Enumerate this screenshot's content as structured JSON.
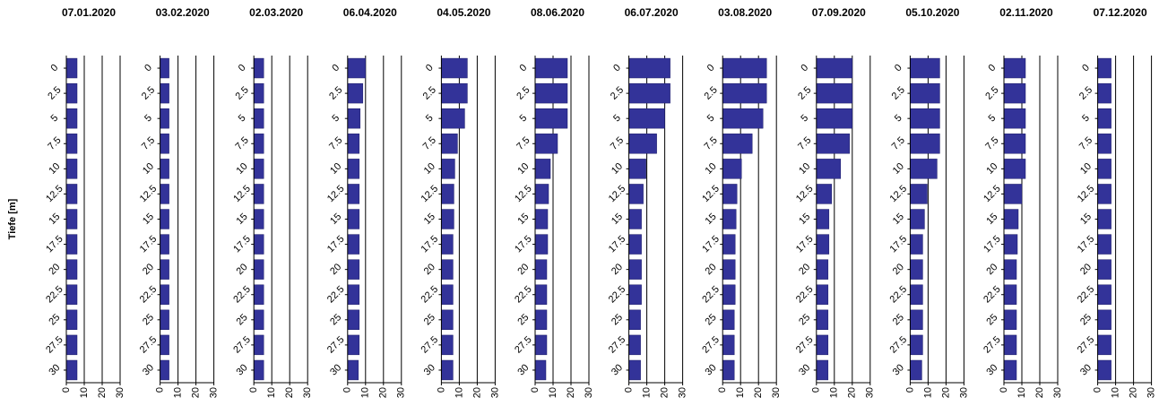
{
  "chart_data": {
    "type": "bar",
    "orientation": "horizontal",
    "ylabel": "Tiefe [m]",
    "xlabel": "",
    "xlim": [
      0,
      30
    ],
    "x_ticks": [
      "0",
      "10",
      "20",
      "30"
    ],
    "categories": [
      "0",
      "2.5",
      "5",
      "7.5",
      "10",
      "12.5",
      "15",
      "17.5",
      "20",
      "22.5",
      "25",
      "27.5",
      "30"
    ],
    "grid": "vertical",
    "colors": {
      "bar": "#333399",
      "bar_edge": "#1a1a66",
      "axis": "#000000"
    },
    "panels": [
      {
        "title": "07.01.2020",
        "values": [
          6.0,
          6.0,
          6.0,
          6.0,
          6.0,
          6.0,
          6.0,
          6.0,
          6.0,
          6.0,
          6.0,
          6.0,
          6.0
        ]
      },
      {
        "title": "03.02.2020",
        "values": [
          5.0,
          5.0,
          5.0,
          5.0,
          5.0,
          5.0,
          5.0,
          5.0,
          5.0,
          5.0,
          5.0,
          5.0,
          5.0
        ]
      },
      {
        "title": "02.03.2020",
        "values": [
          5.5,
          5.5,
          5.5,
          5.5,
          5.5,
          5.5,
          5.5,
          5.5,
          5.5,
          5.5,
          5.5,
          5.5,
          5.5
        ]
      },
      {
        "title": "06.04.2020",
        "values": [
          10.0,
          8.5,
          7.0,
          6.5,
          6.5,
          6.5,
          6.5,
          6.5,
          6.5,
          6.5,
          6.5,
          6.5,
          6.0
        ]
      },
      {
        "title": "04.05.2020",
        "values": [
          14.5,
          14.5,
          13.0,
          9.0,
          7.5,
          7.0,
          7.0,
          6.5,
          6.5,
          6.5,
          6.5,
          6.5,
          6.5
        ]
      },
      {
        "title": "08.06.2020",
        "values": [
          18.0,
          18.0,
          18.0,
          12.5,
          8.5,
          7.5,
          7.0,
          7.0,
          6.5,
          6.5,
          6.5,
          6.5,
          6.0
        ]
      },
      {
        "title": "06.07.2020",
        "values": [
          23.0,
          23.0,
          20.0,
          15.5,
          9.5,
          8.0,
          7.0,
          7.0,
          7.0,
          7.0,
          6.5,
          6.5,
          6.5
        ]
      },
      {
        "title": "03.08.2020",
        "values": [
          24.5,
          24.5,
          22.5,
          16.5,
          10.5,
          8.0,
          7.5,
          7.0,
          7.0,
          7.0,
          6.5,
          6.5,
          6.5
        ]
      },
      {
        "title": "07.09.2020",
        "values": [
          20.0,
          20.0,
          20.0,
          18.5,
          13.5,
          8.5,
          7.0,
          7.0,
          6.5,
          6.5,
          6.5,
          6.5,
          6.5
        ]
      },
      {
        "title": "05.10.2020",
        "values": [
          16.5,
          16.5,
          16.5,
          16.5,
          15.0,
          9.5,
          8.0,
          7.0,
          7.0,
          7.0,
          7.0,
          7.0,
          6.5
        ]
      },
      {
        "title": "02.11.2020",
        "values": [
          12.0,
          12.0,
          12.0,
          12.0,
          12.0,
          10.0,
          8.0,
          7.5,
          7.0,
          7.0,
          7.0,
          7.0,
          7.0
        ]
      },
      {
        "title": "07.12.2020",
        "values": [
          7.5,
          7.5,
          7.5,
          7.5,
          7.5,
          7.5,
          7.5,
          7.5,
          7.5,
          7.5,
          7.5,
          7.5,
          7.5
        ]
      }
    ]
  }
}
